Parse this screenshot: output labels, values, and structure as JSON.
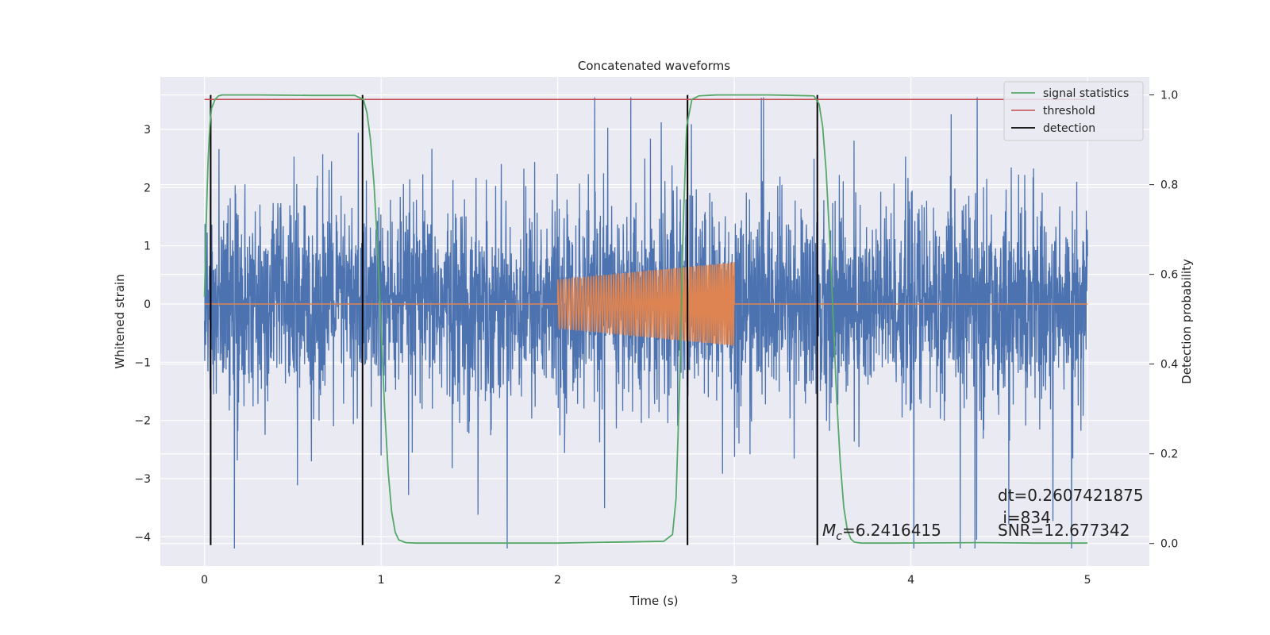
{
  "chart_data": {
    "type": "line",
    "title": "Concatenated waveforms",
    "xlabel": "Time (s)",
    "ylabel": "Whitened strain",
    "y2label": "Detection probability",
    "xlim": [
      -0.25,
      5.35
    ],
    "ylim": [
      -4.5,
      3.9
    ],
    "y2lim": [
      -0.05,
      1.04
    ],
    "x_ticks": [
      0,
      1,
      2,
      3,
      4,
      5
    ],
    "x_tick_labels": [
      "0",
      "1",
      "2",
      "3",
      "4",
      "5"
    ],
    "y_ticks": [
      -4,
      -3,
      -2,
      -1,
      0,
      1,
      2,
      3
    ],
    "y_tick_labels": [
      "−4",
      "−3",
      "−2",
      "−1",
      "0",
      "1",
      "2",
      "3"
    ],
    "y2_ticks": [
      0.0,
      0.2,
      0.4,
      0.6,
      0.8,
      1.0
    ],
    "y2_tick_labels": [
      "0.0",
      "0.2",
      "0.4",
      "0.6",
      "0.8",
      "1.0"
    ],
    "grid": true,
    "legend_position": "top-right",
    "colors": {
      "strain": "#4c72b0",
      "template": "#dd8452",
      "signal_statistics": "#55a868",
      "threshold": "#c44e52",
      "detection": "#000000",
      "plot_background": "#eaeaf2",
      "grid": "#ffffff"
    },
    "series": [
      {
        "name": "",
        "axis": "left",
        "style": "noise",
        "x_range": [
          0,
          5
        ],
        "y_range": [
          -4.2,
          3.55
        ]
      },
      {
        "name": "",
        "axis": "left",
        "style": "chirp",
        "x_range": [
          0,
          5
        ],
        "chirp_start": 2.0,
        "chirp_end": 3.0,
        "amplitude_start": 0.42,
        "amplitude_end": 0.72
      },
      {
        "name": "signal statistics",
        "axis": "right",
        "x": [
          0.0,
          0.01,
          0.02,
          0.03,
          0.04,
          0.06,
          0.08,
          0.1,
          0.3,
          0.6,
          0.85,
          0.9,
          0.92,
          0.94,
          0.96,
          0.98,
          1.0,
          1.02,
          1.04,
          1.06,
          1.08,
          1.1,
          1.14,
          1.2,
          1.5,
          2.0,
          2.3,
          2.6,
          2.65,
          2.67,
          2.69,
          2.71,
          2.73,
          2.76,
          2.8,
          2.9,
          3.2,
          3.45,
          3.48,
          3.5,
          3.52,
          3.54,
          3.56,
          3.58,
          3.6,
          3.62,
          3.64,
          3.66,
          3.68,
          3.72,
          3.9,
          4.4,
          4.7,
          5.0
        ],
        "y": [
          0.55,
          0.72,
          0.85,
          0.93,
          0.97,
          0.99,
          0.998,
          1.0,
          1.0,
          0.999,
          0.999,
          0.99,
          0.96,
          0.9,
          0.8,
          0.66,
          0.48,
          0.3,
          0.16,
          0.07,
          0.025,
          0.008,
          0.002,
          0.001,
          0.001,
          0.001,
          0.003,
          0.005,
          0.02,
          0.1,
          0.35,
          0.7,
          0.93,
          0.99,
          0.998,
          1.0,
          1.0,
          0.998,
          0.98,
          0.93,
          0.83,
          0.68,
          0.5,
          0.32,
          0.18,
          0.08,
          0.03,
          0.01,
          0.003,
          0.001,
          0.001,
          0.002,
          0.001,
          0.001
        ]
      },
      {
        "name": "threshold",
        "axis": "right",
        "x": [
          0.0,
          5.0
        ],
        "y": [
          0.99,
          0.99
        ]
      }
    ],
    "detections": {
      "name": "detection",
      "x": [
        0.035,
        0.895,
        2.735,
        3.47
      ],
      "y_range": [
        0.0,
        1.0
      ]
    },
    "annotations": [
      {
        "text_main": "M",
        "text_sub": "c",
        "text_rest": "=6.2416415"
      },
      {
        "text": "dt=0.2607421875"
      },
      {
        "text": " i=834"
      },
      {
        "text": "SNR=12.677342"
      }
    ]
  }
}
